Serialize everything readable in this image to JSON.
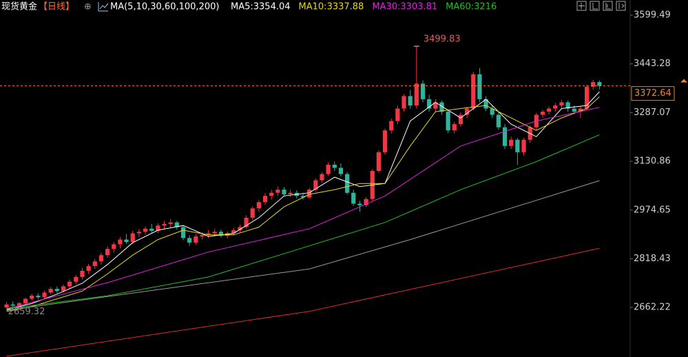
{
  "chart_data": {
    "type": "candlestick",
    "title": "现货黄金",
    "period": "【日线】",
    "indicator": "MA(5,10,30,60,100,200)",
    "up_color": "#f23645",
    "down_color": "#2fb39b",
    "ylim": [
      2503.5,
      3648.1
    ],
    "yticks": [
      2662.22,
      2818.43,
      2974.65,
      3130.86,
      3287.07,
      3443.28,
      3599.49
    ],
    "candles": [
      [
        2662,
        2680,
        2659.32,
        2672
      ],
      [
        2672,
        2682,
        2662,
        2668
      ],
      [
        2668,
        2680,
        2660,
        2676
      ],
      [
        2676,
        2694,
        2670,
        2690
      ],
      [
        2690,
        2706,
        2684,
        2700
      ],
      [
        2700,
        2708,
        2688,
        2695
      ],
      [
        2695,
        2716,
        2690,
        2710
      ],
      [
        2710,
        2728,
        2704,
        2722
      ],
      [
        2722,
        2730,
        2708,
        2715
      ],
      [
        2715,
        2736,
        2710,
        2730
      ],
      [
        2730,
        2752,
        2722,
        2745
      ],
      [
        2745,
        2766,
        2738,
        2760
      ],
      [
        2760,
        2790,
        2752,
        2780
      ],
      [
        2780,
        2802,
        2770,
        2795
      ],
      [
        2795,
        2818,
        2786,
        2810
      ],
      [
        2810,
        2838,
        2800,
        2830
      ],
      [
        2830,
        2858,
        2822,
        2850
      ],
      [
        2850,
        2872,
        2838,
        2865
      ],
      [
        2865,
        2888,
        2852,
        2880
      ],
      [
        2880,
        2898,
        2866,
        2872
      ],
      [
        2872,
        2908,
        2866,
        2900
      ],
      [
        2900,
        2914,
        2888,
        2905
      ],
      [
        2905,
        2922,
        2896,
        2915
      ],
      [
        2915,
        2930,
        2902,
        2908
      ],
      [
        2908,
        2932,
        2900,
        2925
      ],
      [
        2925,
        2940,
        2914,
        2930
      ],
      [
        2930,
        2946,
        2918,
        2935
      ],
      [
        2935,
        2940,
        2912,
        2920
      ],
      [
        2920,
        2926,
        2878,
        2885
      ],
      [
        2885,
        2894,
        2860,
        2870
      ],
      [
        2870,
        2898,
        2864,
        2890
      ],
      [
        2890,
        2904,
        2880,
        2895
      ],
      [
        2895,
        2910,
        2886,
        2900
      ],
      [
        2900,
        2914,
        2890,
        2905
      ],
      [
        2905,
        2912,
        2886,
        2892
      ],
      [
        2892,
        2906,
        2884,
        2900
      ],
      [
        2900,
        2918,
        2894,
        2910
      ],
      [
        2910,
        2928,
        2902,
        2920
      ],
      [
        2920,
        2958,
        2914,
        2950
      ],
      [
        2950,
        2986,
        2944,
        2980
      ],
      [
        2980,
        3006,
        2970,
        3000
      ],
      [
        3000,
        3030,
        2992,
        3020
      ],
      [
        3020,
        3040,
        3008,
        3030
      ],
      [
        3030,
        3050,
        3020,
        3040
      ],
      [
        3040,
        3048,
        3018,
        3025
      ],
      [
        3025,
        3040,
        3016,
        3030
      ],
      [
        3030,
        3038,
        3012,
        3020
      ],
      [
        3020,
        3030,
        3008,
        3015
      ],
      [
        3015,
        3046,
        3010,
        3040
      ],
      [
        3040,
        3076,
        3034,
        3070
      ],
      [
        3070,
        3096,
        3062,
        3090
      ],
      [
        3090,
        3128,
        3084,
        3120
      ],
      [
        3120,
        3130,
        3100,
        3110
      ],
      [
        3110,
        3124,
        3082,
        3090
      ],
      [
        3090,
        3096,
        3024,
        3030
      ],
      [
        3030,
        3040,
        2988,
        2995
      ],
      [
        2995,
        3004,
        2970,
        2990
      ],
      [
        2990,
        3016,
        2984,
        3010
      ],
      [
        3010,
        3106,
        3004,
        3100
      ],
      [
        3100,
        3166,
        3094,
        3160
      ],
      [
        3160,
        3236,
        3152,
        3230
      ],
      [
        3230,
        3268,
        3220,
        3260
      ],
      [
        3260,
        3310,
        3250,
        3300
      ],
      [
        3300,
        3346,
        3290,
        3340
      ],
      [
        3340,
        3360,
        3300,
        3310
      ],
      [
        3310,
        3499.83,
        3300,
        3380
      ],
      [
        3380,
        3390,
        3320,
        3330
      ],
      [
        3330,
        3344,
        3290,
        3300
      ],
      [
        3300,
        3330,
        3290,
        3320
      ],
      [
        3320,
        3326,
        3280,
        3290
      ],
      [
        3290,
        3296,
        3222,
        3230
      ],
      [
        3230,
        3258,
        3220,
        3250
      ],
      [
        3250,
        3288,
        3242,
        3280
      ],
      [
        3280,
        3306,
        3270,
        3300
      ],
      [
        3300,
        3418,
        3294,
        3410
      ],
      [
        3410,
        3430,
        3320,
        3330
      ],
      [
        3330,
        3340,
        3292,
        3300
      ],
      [
        3300,
        3310,
        3270,
        3280
      ],
      [
        3280,
        3290,
        3232,
        3240
      ],
      [
        3240,
        3250,
        3170,
        3180
      ],
      [
        3180,
        3210,
        3170,
        3200
      ],
      [
        3200,
        3206,
        3120,
        3160
      ],
      [
        3160,
        3206,
        3150,
        3200
      ],
      [
        3200,
        3246,
        3190,
        3240
      ],
      [
        3240,
        3286,
        3232,
        3280
      ],
      [
        3280,
        3296,
        3270,
        3290
      ],
      [
        3290,
        3306,
        3280,
        3300
      ],
      [
        3300,
        3318,
        3290,
        3310
      ],
      [
        3310,
        3328,
        3300,
        3320
      ],
      [
        3320,
        3326,
        3290,
        3300
      ],
      [
        3300,
        3310,
        3282,
        3290
      ],
      [
        3290,
        3306,
        3270,
        3300
      ],
      [
        3300,
        3376,
        3294,
        3370
      ],
      [
        3370,
        3392,
        3360,
        3385
      ],
      [
        3385,
        3390,
        3362,
        3372.64
      ]
    ],
    "series": [
      {
        "name": "MA5:3354.04",
        "color": "#ffffff",
        "x": [
          0,
          4,
          8,
          12,
          16,
          20,
          24,
          28,
          32,
          36,
          40,
          44,
          48,
          52,
          56,
          60,
          64,
          68,
          72,
          76,
          80,
          84,
          88,
          92,
          94
        ],
        "values": [
          2655,
          2675,
          2705,
          2740,
          2800,
          2870,
          2910,
          2925,
          2890,
          2900,
          2950,
          3020,
          3030,
          3080,
          3050,
          3060,
          3260,
          3320,
          3270,
          3330,
          3250,
          3210,
          3300,
          3310,
          3354.04
        ]
      },
      {
        "name": "MA10:3337.88",
        "color": "#e8d820",
        "x": [
          0,
          4,
          8,
          12,
          16,
          20,
          24,
          28,
          32,
          36,
          40,
          44,
          48,
          52,
          56,
          60,
          64,
          68,
          72,
          76,
          80,
          84,
          88,
          92,
          94
        ],
        "values": [
          2650,
          2665,
          2690,
          2715,
          2770,
          2830,
          2880,
          2910,
          2895,
          2895,
          2920,
          2985,
          3025,
          3040,
          3060,
          3060,
          3180,
          3290,
          3300,
          3310,
          3270,
          3230,
          3270,
          3300,
          3337.88
        ]
      },
      {
        "name": "MA30:3303.81",
        "color": "#e020e0",
        "x": [
          0,
          16,
          32,
          48,
          60,
          72,
          84,
          94
        ],
        "values": [
          2658,
          2742,
          2840,
          2915,
          3020,
          3180,
          3260,
          3303.81
        ]
      },
      {
        "name": "MA60:3216",
        "color": "#22c022",
        "x": [
          0,
          16,
          32,
          48,
          60,
          72,
          84,
          94
        ],
        "values": [
          2658,
          2700,
          2760,
          2860,
          2935,
          3040,
          3130,
          3216
        ]
      },
      {
        "color": "#9a9a9a",
        "x": [
          0,
          48,
          64,
          94
        ],
        "values": [
          2653,
          2786,
          2880,
          3069
        ]
      },
      {
        "color": "#e02a2a",
        "x": [
          0,
          48,
          94
        ],
        "values": [
          2506,
          2650,
          2852
        ]
      }
    ],
    "last_color": "#e8892b"
  }
}
